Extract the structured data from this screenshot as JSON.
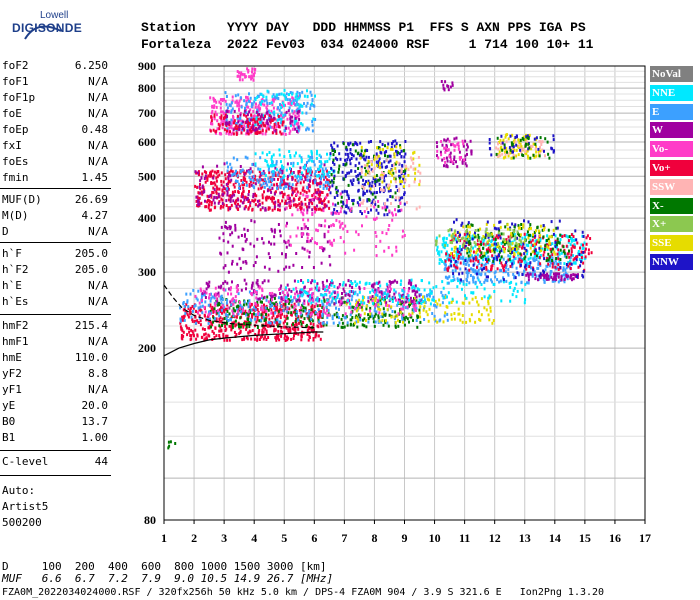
{
  "logo": {
    "top": "Lowell",
    "main": "DIGISONDE"
  },
  "header": {
    "line1": "Station    YYYY DAY   DDD HHMMSS P1  FFS S AXN PPS IGA PS",
    "line2": "Fortaleza  2022 Fev03  034 024000 RSF     1 714 100 10+ 11"
  },
  "params": [
    {
      "name": "foF2",
      "value": "6.250"
    },
    {
      "name": "foF1",
      "value": "N/A"
    },
    {
      "name": "foF1p",
      "value": "N/A"
    },
    {
      "name": "foE",
      "value": "N/A"
    },
    {
      "name": "foEp",
      "value": "0.48"
    },
    {
      "name": "fxI",
      "value": "N/A"
    },
    {
      "name": "foEs",
      "value": "N/A"
    },
    {
      "name": "fmin",
      "value": "1.45"
    },
    {
      "name": "MUF(D)",
      "value": "26.69"
    },
    {
      "name": "M(D)",
      "value": "4.27"
    },
    {
      "name": "D",
      "value": "N/A"
    },
    {
      "name": "h`F",
      "value": "205.0"
    },
    {
      "name": "h`F2",
      "value": "205.0"
    },
    {
      "name": "h`E",
      "value": "N/A"
    },
    {
      "name": "h`Es",
      "value": "N/A"
    },
    {
      "name": "hmF2",
      "value": "215.4"
    },
    {
      "name": "hmF1",
      "value": "N/A"
    },
    {
      "name": "hmE",
      "value": "110.0"
    },
    {
      "name": "yF2",
      "value": "8.8"
    },
    {
      "name": "yF1",
      "value": "N/A"
    },
    {
      "name": "yE",
      "value": "20.0"
    },
    {
      "name": "B0",
      "value": "13.7"
    },
    {
      "name": "B1",
      "value": "1.00"
    },
    {
      "name": "C-level",
      "value": "44"
    }
  ],
  "auto": {
    "line1": "Auto:",
    "line2": "Artist5",
    "line3": "500200"
  },
  "legend": [
    {
      "label": "NoVal",
      "color": "#808080",
      "text_color": "#ffffff"
    },
    {
      "label": "NNE",
      "color": "#00e8ff",
      "text_color": "#ffffff"
    },
    {
      "label": "E",
      "color": "#3ca0ff",
      "text_color": "#ffffff"
    },
    {
      "label": "W",
      "color": "#a000a0",
      "text_color": "#ffffff"
    },
    {
      "label": "Vo-",
      "color": "#ff3cc8",
      "text_color": "#ffffff"
    },
    {
      "label": "Vo+",
      "color": "#f0003c",
      "text_color": "#ffffff"
    },
    {
      "label": "SSW",
      "color": "#ffb4b4",
      "text_color": "#ffffff"
    },
    {
      "label": "X-",
      "color": "#007800",
      "text_color": "#ffffff"
    },
    {
      "label": "X+",
      "color": "#8cc850",
      "text_color": "#ffffff"
    },
    {
      "label": "SSE",
      "color": "#e6dc00",
      "text_color": "#ffffff"
    },
    {
      "label": "NNW",
      "color": "#1e14c8",
      "text_color": "#ffffff"
    }
  ],
  "footer": {
    "d_line": "D     100  200  400  600  800 1000 1500 3000 [km]",
    "muf_line": "MUF   6.6  6.7  7.2  7.9  9.0 10.5 14.9 26.7 [MHz]",
    "file_line": "FZA0M_2022034024000.RSF / 320fx256h 50 kHz 5.0 km / DPS-4 FZA0M 904 / 3.9 S 321.6 E   Ion2Png 1.3.20"
  },
  "chart_data": {
    "type": "scatter",
    "x_ticks": [
      "1",
      "2",
      "3",
      "4",
      "5",
      "6",
      "7",
      "8",
      "9",
      "10",
      "11",
      "12",
      "13",
      "14",
      "15",
      "16",
      "17"
    ],
    "y_ticks": [
      "80",
      "200",
      "300",
      "400",
      "500",
      "600",
      "700",
      "800",
      "900"
    ],
    "xlim": [
      1,
      17
    ],
    "y_scale": "log",
    "ylim": [
      80,
      900
    ],
    "grid": true,
    "point_clusters": [
      {
        "color": "#f0003c",
        "x0": 1.5,
        "x1": 6.3,
        "y0": 210,
        "y1": 255,
        "count": 500
      },
      {
        "color": "#007800",
        "x0": 2.5,
        "x1": 9.5,
        "y0": 225,
        "y1": 265,
        "count": 280
      },
      {
        "color": "#3ca0ff",
        "x0": 1.5,
        "x1": 10.5,
        "y0": 230,
        "y1": 275,
        "count": 300
      },
      {
        "color": "#e6dc00",
        "x0": 7.0,
        "x1": 12.0,
        "y0": 230,
        "y1": 265,
        "count": 120
      },
      {
        "color": "#a000a0",
        "x0": 2.2,
        "x1": 9.5,
        "y0": 255,
        "y1": 290,
        "count": 200
      },
      {
        "color": "#ff3cc8",
        "x0": 2.0,
        "x1": 9.5,
        "y0": 240,
        "y1": 280,
        "count": 180
      },
      {
        "color": "#00e8ff",
        "x0": 5.0,
        "x1": 13.0,
        "y0": 255,
        "y1": 290,
        "count": 160
      },
      {
        "color": "#00e8ff",
        "x0": 10.0,
        "x1": 15.0,
        "y0": 315,
        "y1": 370,
        "count": 260
      },
      {
        "color": "#3ca0ff",
        "x0": 10.3,
        "x1": 14.5,
        "y0": 285,
        "y1": 330,
        "count": 220
      },
      {
        "color": "#f0003c",
        "x0": 10.3,
        "x1": 15.2,
        "y0": 305,
        "y1": 370,
        "count": 200
      },
      {
        "color": "#a000a0",
        "x0": 13.0,
        "x1": 14.8,
        "y0": 290,
        "y1": 300,
        "count": 60
      },
      {
        "color": "#007800",
        "x0": 11.0,
        "x1": 14.5,
        "y0": 320,
        "y1": 390,
        "count": 120
      },
      {
        "color": "#e6dc00",
        "x0": 10.5,
        "x1": 14.0,
        "y0": 330,
        "y1": 390,
        "count": 90
      },
      {
        "color": "#1e14c8",
        "x0": 10.5,
        "x1": 15.0,
        "y0": 290,
        "y1": 400,
        "count": 110
      },
      {
        "color": "#8cc850",
        "x0": 10.0,
        "x1": 13.0,
        "y0": 340,
        "y1": 380,
        "count": 70
      },
      {
        "color": "#f0003c",
        "x0": 2.0,
        "x1": 6.5,
        "y0": 420,
        "y1": 520,
        "count": 420
      },
      {
        "color": "#a000a0",
        "x0": 2.0,
        "x1": 6.5,
        "y0": 420,
        "y1": 540,
        "count": 160
      },
      {
        "color": "#3ca0ff",
        "x0": 3.0,
        "x1": 6.5,
        "y0": 470,
        "y1": 560,
        "count": 140
      },
      {
        "color": "#00e8ff",
        "x0": 4.0,
        "x1": 6.7,
        "y0": 500,
        "y1": 580,
        "count": 80
      },
      {
        "color": "#1e14c8",
        "x0": 6.5,
        "x1": 9.0,
        "y0": 410,
        "y1": 610,
        "count": 260
      },
      {
        "color": "#007800",
        "x0": 6.5,
        "x1": 9.0,
        "y0": 420,
        "y1": 600,
        "count": 80
      },
      {
        "color": "#e6dc00",
        "x0": 7.5,
        "x1": 9.5,
        "y0": 470,
        "y1": 590,
        "count": 60
      },
      {
        "color": "#ffb4b4",
        "x0": 7.5,
        "x1": 9.5,
        "y0": 420,
        "y1": 560,
        "count": 60
      },
      {
        "color": "#ff3cc8",
        "x0": 2.5,
        "x1": 5.5,
        "y0": 630,
        "y1": 770,
        "count": 240
      },
      {
        "color": "#3ca0ff",
        "x0": 3.0,
        "x1": 6.0,
        "y0": 640,
        "y1": 790,
        "count": 150
      },
      {
        "color": "#00e8ff",
        "x0": 4.0,
        "x1": 6.0,
        "y0": 660,
        "y1": 800,
        "count": 60
      },
      {
        "color": "#f0003c",
        "x0": 2.5,
        "x1": 5.0,
        "y0": 630,
        "y1": 700,
        "count": 110
      },
      {
        "color": "#a000a0",
        "x0": 3.0,
        "x1": 5.5,
        "y0": 640,
        "y1": 720,
        "count": 60
      },
      {
        "color": "#ff3cc8",
        "x0": 3.3,
        "x1": 4.0,
        "y0": 840,
        "y1": 900,
        "count": 30
      },
      {
        "color": "#a000a0",
        "x0": 2.8,
        "x1": 6.5,
        "y0": 300,
        "y1": 400,
        "count": 110
      },
      {
        "color": "#ff3cc8",
        "x0": 5.0,
        "x1": 9.0,
        "y0": 330,
        "y1": 460,
        "count": 120
      },
      {
        "color": "#e6dc00",
        "x0": 12.0,
        "x1": 13.5,
        "y0": 555,
        "y1": 630,
        "count": 80
      },
      {
        "color": "#ffb4b4",
        "x0": 12.0,
        "x1": 13.8,
        "y0": 560,
        "y1": 610,
        "count": 40
      },
      {
        "color": "#1e14c8",
        "x0": 11.8,
        "x1": 14.0,
        "y0": 560,
        "y1": 630,
        "count": 35
      },
      {
        "color": "#007800",
        "x0": 12.0,
        "x1": 13.8,
        "y0": 555,
        "y1": 620,
        "count": 30
      },
      {
        "color": "#a000a0",
        "x0": 10.0,
        "x1": 11.2,
        "y0": 530,
        "y1": 620,
        "count": 50
      },
      {
        "color": "#ff3cc8",
        "x0": 10.0,
        "x1": 11.0,
        "y0": 540,
        "y1": 610,
        "count": 30
      },
      {
        "color": "#a000a0",
        "x0": 10.2,
        "x1": 10.6,
        "y0": 770,
        "y1": 840,
        "count": 12
      },
      {
        "color": "#007800",
        "x0": 1.1,
        "x1": 1.5,
        "y0": 118,
        "y1": 124,
        "count": 5
      }
    ],
    "dashed_curve": {
      "color": "#000000",
      "points": [
        [
          1.0,
          280
        ],
        [
          1.3,
          262
        ],
        [
          1.6,
          248
        ],
        [
          2.0,
          238
        ],
        [
          2.5,
          232
        ],
        [
          3.2,
          228
        ],
        [
          4.0,
          226
        ],
        [
          5.0,
          224
        ],
        [
          6.0,
          223
        ]
      ]
    },
    "solid_curve": {
      "color": "#000000",
      "points": [
        [
          1.0,
          192
        ],
        [
          1.5,
          200
        ],
        [
          2.0,
          205
        ],
        [
          2.5,
          209
        ],
        [
          3.0,
          211
        ],
        [
          4.0,
          214
        ],
        [
          5.0,
          216
        ],
        [
          6.0,
          218
        ],
        [
          6.3,
          218
        ]
      ]
    }
  }
}
